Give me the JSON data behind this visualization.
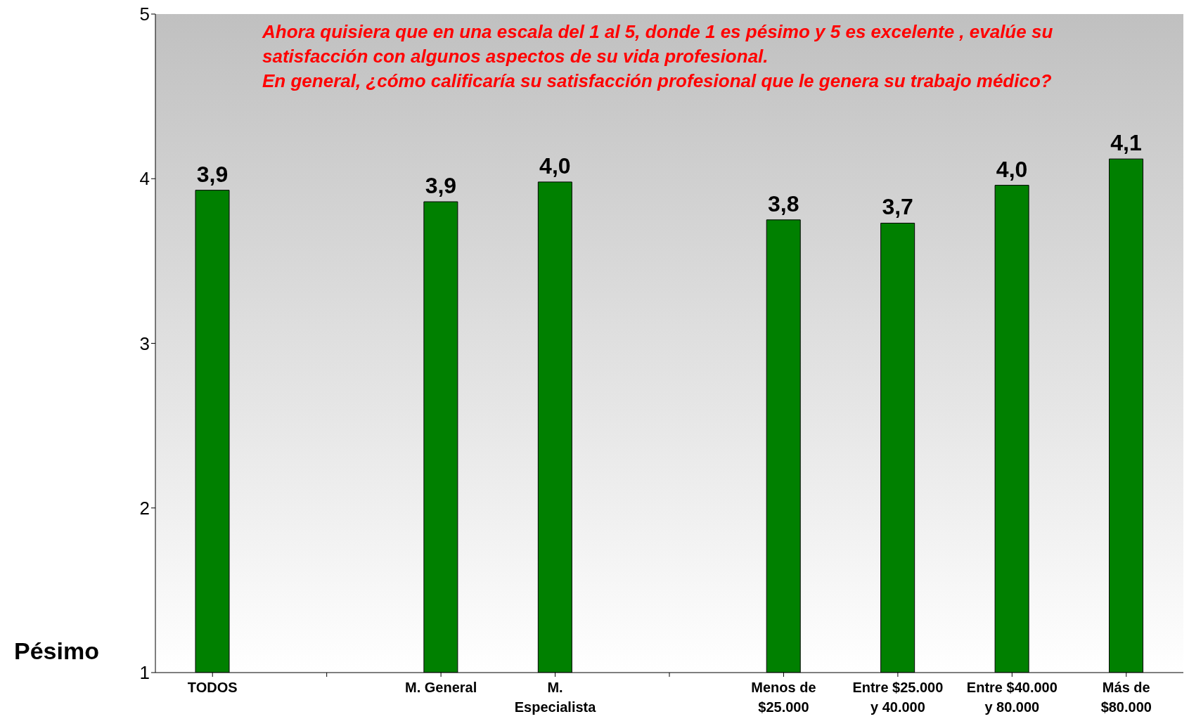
{
  "chart_data": {
    "type": "bar",
    "title": "Ahora quisiera que en una escala del 1 al 5,  donde 1 es pésimo y 5 es excelente , evalúe su satisfacción con algunos aspectos de su vida profesional.",
    "subtitle": "En general, ¿cómo calificaría su satisfacción profesional que le genera su trabajo médico?",
    "annotations": [
      "Pésimo"
    ],
    "categories": [
      "TODOS",
      null,
      "M. General",
      "M. Especialista",
      null,
      "Menos de $25.000",
      "Entre $25.000 y 40.000",
      "Entre $40.000 y 80.000",
      "Más de $80.000"
    ],
    "values": [
      3.93,
      null,
      3.86,
      3.98,
      null,
      3.75,
      3.73,
      3.96,
      4.12
    ],
    "value_labels": [
      "3,9",
      null,
      "3,9",
      "4,0",
      null,
      "3,8",
      "3,7",
      "4,0",
      "4,1"
    ],
    "color": "#008000",
    "ylim": [
      1,
      5
    ],
    "yticks": [
      1,
      2,
      3,
      4,
      5
    ],
    "grid": false,
    "legend": false
  }
}
